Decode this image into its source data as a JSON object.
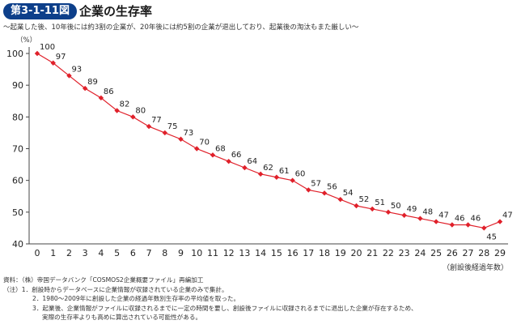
{
  "header": {
    "badge": "第3-1-11図",
    "title": "企業の生存率",
    "subtitle": "～起業した後、10年後には約3割の企業が、20年後には約5割の企業が退出しており、起業後の淘汰もまた厳しい～"
  },
  "chart_data": {
    "type": "line",
    "title": "企業の生存率",
    "xlabel": "（創設後経過年数）",
    "ylabel": "（%）",
    "ylim": [
      40,
      100
    ],
    "yticks": [
      40,
      50,
      60,
      70,
      80,
      90,
      100
    ],
    "x": [
      0,
      1,
      2,
      3,
      4,
      5,
      6,
      7,
      8,
      9,
      10,
      11,
      12,
      13,
      14,
      15,
      16,
      17,
      18,
      19,
      20,
      21,
      22,
      23,
      24,
      25,
      26,
      27,
      28,
      29
    ],
    "values": [
      100,
      97,
      93,
      89,
      86,
      82,
      80,
      77,
      75,
      73,
      70,
      68,
      66,
      64,
      62,
      61,
      60,
      57,
      56,
      54,
      52,
      51,
      50,
      49,
      48,
      47,
      46,
      46,
      45,
      47
    ],
    "color": "#e0202a",
    "grid": false,
    "legend": "none"
  },
  "notes": {
    "source": "資料：（株）帝国データバンク「COSMOS2企業概要ファイル」再編加工",
    "note_head": "（注）1．創設時からデータベースに企業情報が収録されている企業のみで集計。",
    "note2": "2．1980～2009年に創設した企業の経過年数別生存率の平均値を取った。",
    "note3a": "3．起業後、企業情報がファイルに収録されるまでに一定の時間を要し、創設後ファイルに収録されるまでに退出した企業が存在するため、",
    "note3b": "実際の生存率よりも高めに算出されている可能性がある。"
  }
}
